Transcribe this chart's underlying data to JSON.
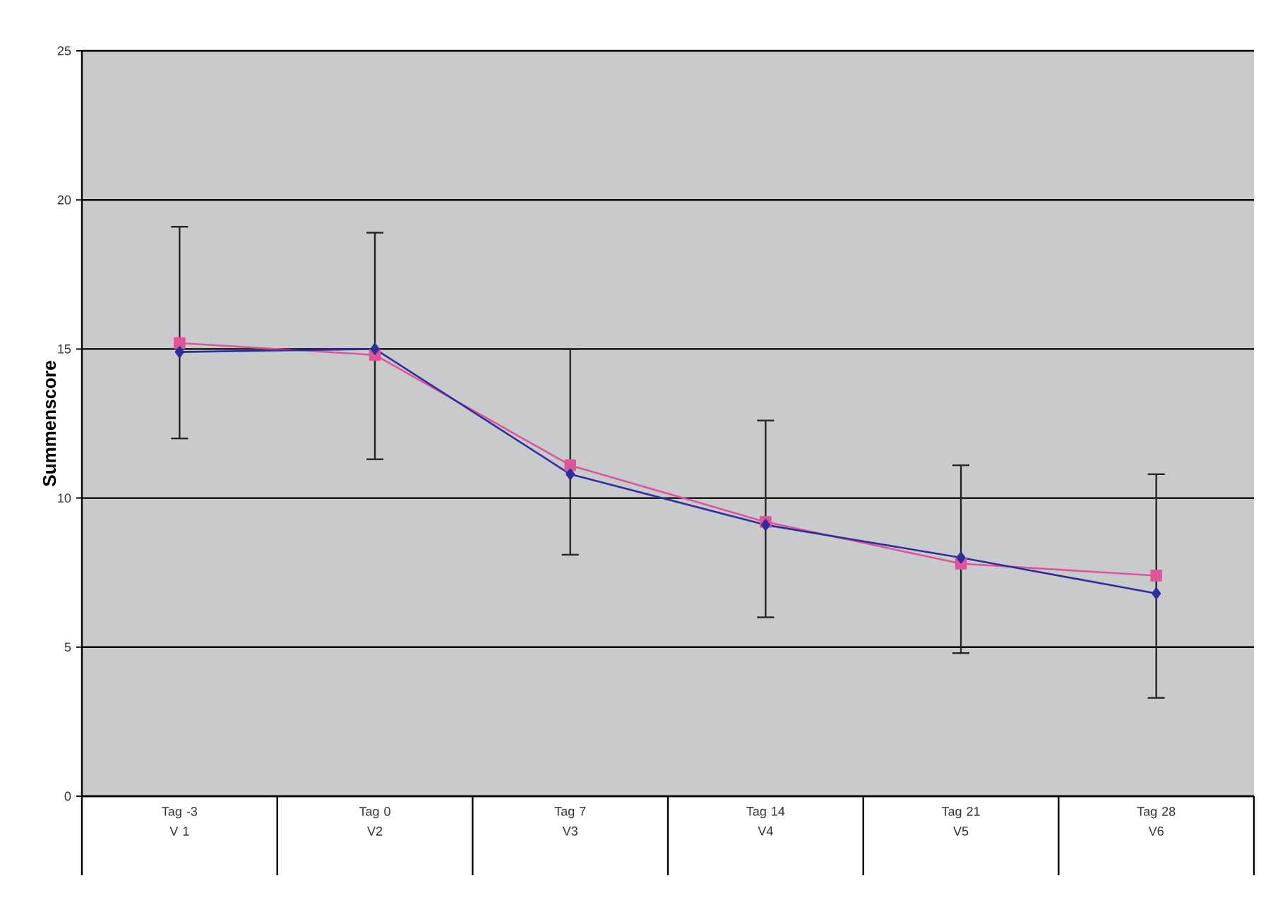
{
  "chart_data": {
    "type": "line",
    "ylabel": "Summenscore",
    "categories": [
      "Tag -3\nV 1",
      "Tag 0\nV2",
      "Tag 7\nV3",
      "Tag 14\nV4",
      "Tag 21\nV5",
      "Tag 28\nV6"
    ],
    "series": [
      {
        "color": "#e0559a",
        "marker": "square",
        "values": [
          15.2,
          14.8,
          11.1,
          9.2,
          7.8,
          7.4
        ]
      },
      {
        "color": "#2e2e9e",
        "marker": "diamond",
        "values": [
          14.9,
          15.0,
          10.8,
          9.1,
          8.0,
          6.8
        ],
        "errors": [
          [
            12.0,
            19.1
          ],
          [
            11.3,
            18.9
          ],
          [
            8.1,
            15.0
          ],
          [
            6.0,
            12.6
          ],
          [
            4.8,
            11.1
          ],
          [
            3.3,
            10.8
          ]
        ]
      }
    ],
    "ylim": [
      0,
      25
    ],
    "yticks": [
      0,
      5,
      10,
      15,
      20,
      25
    ],
    "grid": "y",
    "line_style": "solid"
  }
}
